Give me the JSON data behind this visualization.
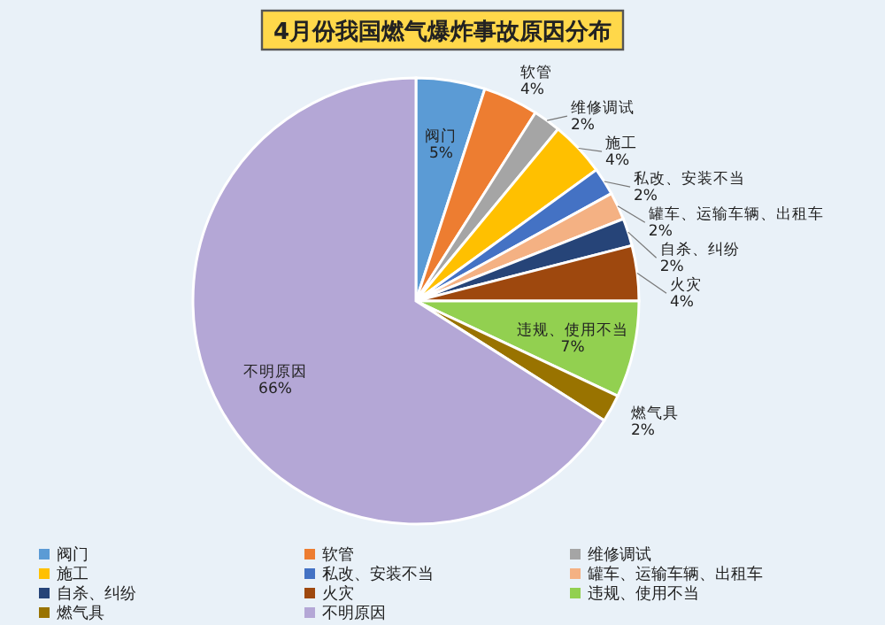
{
  "chart_data": {
    "type": "pie",
    "title": "4月份我国燃气爆炸事故原因分布",
    "categories": [
      "阀门",
      "软管",
      "维修调试",
      "施工",
      "私改、安装不当",
      "罐车、运输车辆、出租车",
      "自杀、纠纷",
      "火灾",
      "违规、使用不当",
      "燃气具",
      "不明原因"
    ],
    "values": [
      5,
      4,
      2,
      4,
      2,
      2,
      2,
      4,
      7,
      2,
      66
    ],
    "value_labels": [
      "5%",
      "4%",
      "2%",
      "4%",
      "2%",
      "2%",
      "2%",
      "4%",
      "7%",
      "2%",
      "66%"
    ],
    "colors": [
      "#5b9bd5",
      "#ed7d31",
      "#a5a5a5",
      "#ffc000",
      "#4472c4",
      "#f4b183",
      "#264478",
      "#9e480e",
      "#92d050",
      "#997300",
      "#b4a7d6"
    ],
    "legend": "bottom"
  }
}
